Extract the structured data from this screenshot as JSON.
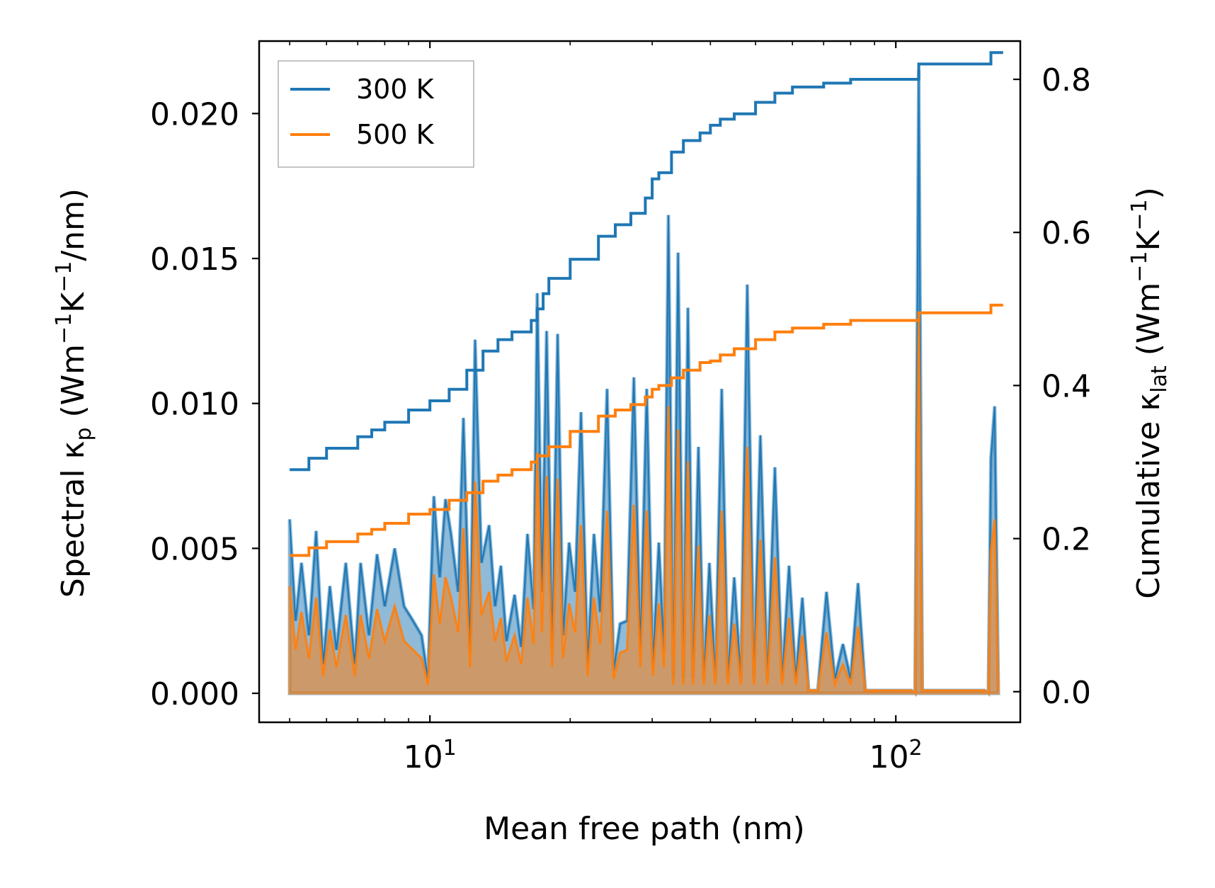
{
  "chart_data": {
    "type": "line",
    "xscale": "log",
    "xlabel": "Mean free path (nm)",
    "ylabel_left": "Spectral κ_p (Wm⁻¹K⁻¹/nm)",
    "ylabel_right": "Cumulative κ_lat (Wm⁻¹K⁻¹)",
    "xlim": [
      4.3,
      185
    ],
    "ylim_left": [
      -0.001,
      0.0225
    ],
    "ylim_right": [
      -0.04,
      0.85
    ],
    "x_ticks": [
      {
        "value": 10,
        "base": "10",
        "exp": "1"
      },
      {
        "value": 100,
        "base": "10",
        "exp": "2"
      }
    ],
    "y_left_ticks": [
      {
        "value": 0,
        "label": "0.000"
      },
      {
        "value": 0.005,
        "label": "0.005"
      },
      {
        "value": 0.01,
        "label": "0.010"
      },
      {
        "value": 0.015,
        "label": "0.015"
      },
      {
        "value": 0.02,
        "label": "0.020"
      }
    ],
    "y_right_ticks": [
      {
        "value": 0,
        "label": "0.0"
      },
      {
        "value": 0.2,
        "label": "0.2"
      },
      {
        "value": 0.4,
        "label": "0.4"
      },
      {
        "value": 0.6,
        "label": "0.6"
      },
      {
        "value": 0.8,
        "label": "0.8"
      }
    ],
    "legend": {
      "position": "top-left",
      "entries": [
        {
          "label": "300 K",
          "color": "#1f77b4"
        },
        {
          "label": "500 K",
          "color": "#ff7f0e"
        }
      ]
    },
    "series": [
      {
        "name": "300 K",
        "color": "#1f77b4",
        "cumulative": {
          "x": [
            5,
            5.5,
            6,
            7,
            7.5,
            8,
            9,
            10,
            11,
            12,
            13,
            14,
            15,
            16.5,
            17,
            17.5,
            18,
            20,
            23,
            25,
            27,
            29,
            30,
            31,
            33,
            35,
            38,
            40,
            42,
            45,
            50,
            55,
            60,
            70,
            80,
            90,
            100,
            110,
            112,
            130,
            150,
            160,
            170
          ],
          "y": [
            0.29,
            0.305,
            0.318,
            0.333,
            0.342,
            0.352,
            0.368,
            0.38,
            0.395,
            0.42,
            0.445,
            0.46,
            0.47,
            0.485,
            0.5,
            0.52,
            0.54,
            0.565,
            0.595,
            0.61,
            0.625,
            0.645,
            0.67,
            0.678,
            0.705,
            0.72,
            0.73,
            0.74,
            0.748,
            0.755,
            0.77,
            0.782,
            0.79,
            0.795,
            0.8,
            0.8,
            0.8,
            0.8,
            0.82,
            0.82,
            0.82,
            0.835,
            0.835
          ]
        },
        "spectral": {
          "x": [
            5,
            5.15,
            5.3,
            5.5,
            5.7,
            5.9,
            6.1,
            6.3,
            6.6,
            6.9,
            7.1,
            7.4,
            7.7,
            8.0,
            8.4,
            8.8,
            9.2,
            9.6,
            9.9,
            10.2,
            10.5,
            10.8,
            11.1,
            11.5,
            11.8,
            12.2,
            12.5,
            12.9,
            13.4,
            13.8,
            14.2,
            14.6,
            15.2,
            15.7,
            16.2,
            16.7,
            17.0,
            17.4,
            17.8,
            18.3,
            18.8,
            19.3,
            19.9,
            20.5,
            21.1,
            21.8,
            22.5,
            23.2,
            24.0,
            24.8,
            25.6,
            26.5,
            27.4,
            28.3,
            29.2,
            30.1,
            31.0,
            31.8,
            32.5,
            33.3,
            34.1,
            35.0,
            35.8,
            36.7,
            37.7,
            38.7,
            39.8,
            41.0,
            42.3,
            43.6,
            45.0,
            46.5,
            48.0,
            49.6,
            51.2,
            53.0,
            55.0,
            57.0,
            59.0,
            61.0,
            63.0,
            65.0,
            68.0,
            71.0,
            74.0,
            77.0,
            80.0,
            83.0,
            86.0,
            90.0,
            100.0,
            108.0,
            110.0,
            112.0,
            114.0,
            120.0,
            140.0,
            155.0,
            158.0,
            160.0,
            163.0,
            166.0
          ],
          "y": [
            0.006,
            0.0025,
            0.0045,
            0.002,
            0.0056,
            0.001,
            0.0037,
            0.0015,
            0.0045,
            0.001,
            0.0045,
            0.002,
            0.0048,
            0.003,
            0.005,
            0.003,
            0.0025,
            0.002,
            0.0005,
            0.0068,
            0.004,
            0.0067,
            0.0055,
            0.0035,
            0.0095,
            0.0015,
            0.0122,
            0.0045,
            0.0058,
            0.003,
            0.0044,
            0.0018,
            0.0034,
            0.0016,
            0.0055,
            0.0029,
            0.0138,
            0.0035,
            0.0125,
            0.0015,
            0.0124,
            0.002,
            0.0052,
            0.0035,
            0.0097,
            0.001,
            0.0055,
            0.0028,
            0.0105,
            0.0008,
            0.0024,
            0.0025,
            0.0109,
            0.0015,
            0.0105,
            0.001,
            0.0052,
            0.0015,
            0.0165,
            0.0005,
            0.0152,
            0.0005,
            0.0133,
            0.0005,
            0.0085,
            0.0005,
            0.0045,
            0.0005,
            0.0105,
            0.0005,
            0.004,
            0.0005,
            0.0141,
            0.0005,
            0.0089,
            0.0005,
            0.0078,
            0.0005,
            0.0044,
            0.0005,
            0.0033,
            0.0001,
            0.0001,
            0.0035,
            0.0005,
            0.0017,
            0.0005,
            0.0038,
            0.0001,
            0.0001,
            0.0001,
            0.0001,
            0.0,
            0.0215,
            0.0001,
            0.0001,
            0.0001,
            0.0001,
            0.0,
            0.0081,
            0.0099,
            0.0001
          ]
        }
      },
      {
        "name": "500 K",
        "color": "#ff7f0e",
        "cumulative": {
          "x": [
            5,
            5.5,
            6,
            7,
            7.5,
            8,
            9,
            10,
            11,
            12,
            13,
            14,
            15,
            16.5,
            17,
            18,
            20,
            23,
            25,
            27,
            29,
            30,
            31,
            33,
            35,
            38,
            40,
            42,
            45,
            50,
            55,
            60,
            70,
            80,
            90,
            100,
            110,
            112,
            130,
            150,
            160,
            170
          ],
          "y": [
            0.178,
            0.188,
            0.196,
            0.206,
            0.212,
            0.22,
            0.232,
            0.238,
            0.25,
            0.26,
            0.275,
            0.283,
            0.29,
            0.3,
            0.308,
            0.32,
            0.34,
            0.36,
            0.368,
            0.375,
            0.385,
            0.395,
            0.4,
            0.41,
            0.42,
            0.43,
            0.432,
            0.44,
            0.448,
            0.46,
            0.47,
            0.475,
            0.48,
            0.485,
            0.485,
            0.485,
            0.485,
            0.495,
            0.495,
            0.495,
            0.505,
            0.505
          ]
        },
        "spectral": {
          "x": [
            5,
            5.15,
            5.3,
            5.5,
            5.7,
            5.9,
            6.1,
            6.3,
            6.6,
            6.9,
            7.1,
            7.4,
            7.7,
            8.0,
            8.4,
            8.8,
            9.2,
            9.6,
            9.9,
            10.2,
            10.5,
            10.8,
            11.1,
            11.5,
            11.8,
            12.2,
            12.5,
            12.9,
            13.4,
            13.8,
            14.2,
            14.6,
            15.2,
            15.7,
            16.2,
            16.7,
            17.0,
            17.4,
            17.8,
            18.3,
            18.8,
            19.3,
            19.9,
            20.5,
            21.1,
            21.8,
            22.5,
            23.2,
            24.0,
            24.8,
            25.6,
            26.5,
            27.4,
            28.3,
            29.2,
            30.1,
            31.0,
            31.8,
            32.5,
            33.3,
            34.1,
            35.0,
            35.8,
            36.7,
            37.7,
            38.7,
            39.8,
            41.0,
            42.3,
            43.6,
            45.0,
            46.5,
            48.0,
            49.6,
            51.2,
            53.0,
            55.0,
            57.0,
            59.0,
            61.0,
            63.0,
            65.0,
            68.0,
            71.0,
            74.0,
            77.0,
            80.0,
            83.0,
            86.0,
            90.0,
            100.0,
            108.0,
            110.0,
            112.0,
            114.0,
            120.0,
            140.0,
            155.0,
            158.0,
            160.0,
            163.0,
            166.0
          ],
          "y": [
            0.0037,
            0.0015,
            0.0028,
            0.0012,
            0.0033,
            0.0006,
            0.0022,
            0.0009,
            0.0027,
            0.0006,
            0.0027,
            0.0012,
            0.0029,
            0.0018,
            0.003,
            0.0018,
            0.0015,
            0.0012,
            0.0003,
            0.0041,
            0.0024,
            0.004,
            0.0033,
            0.0021,
            0.0057,
            0.0009,
            0.0073,
            0.0027,
            0.0035,
            0.0018,
            0.0026,
            0.0011,
            0.002,
            0.001,
            0.0033,
            0.0017,
            0.0083,
            0.0021,
            0.0075,
            0.0009,
            0.0074,
            0.0012,
            0.0031,
            0.0021,
            0.0058,
            0.0006,
            0.0033,
            0.0017,
            0.0063,
            0.0005,
            0.0014,
            0.0015,
            0.0065,
            0.0009,
            0.0063,
            0.0006,
            0.0031,
            0.0009,
            0.0099,
            0.0003,
            0.0091,
            0.0003,
            0.008,
            0.0003,
            0.0051,
            0.0003,
            0.0027,
            0.0003,
            0.0063,
            0.0003,
            0.0024,
            0.0003,
            0.0085,
            0.0003,
            0.0053,
            0.0003,
            0.0047,
            0.0003,
            0.0026,
            0.0003,
            0.002,
            0.0001,
            0.0001,
            0.0021,
            0.0003,
            0.001,
            0.0003,
            0.0023,
            0.0001,
            0.0001,
            0.0001,
            0.0001,
            0.0,
            0.0129,
            0.0001,
            0.0001,
            0.0001,
            0.0001,
            0.0,
            0.0049,
            0.006,
            0.0001
          ]
        }
      }
    ]
  }
}
